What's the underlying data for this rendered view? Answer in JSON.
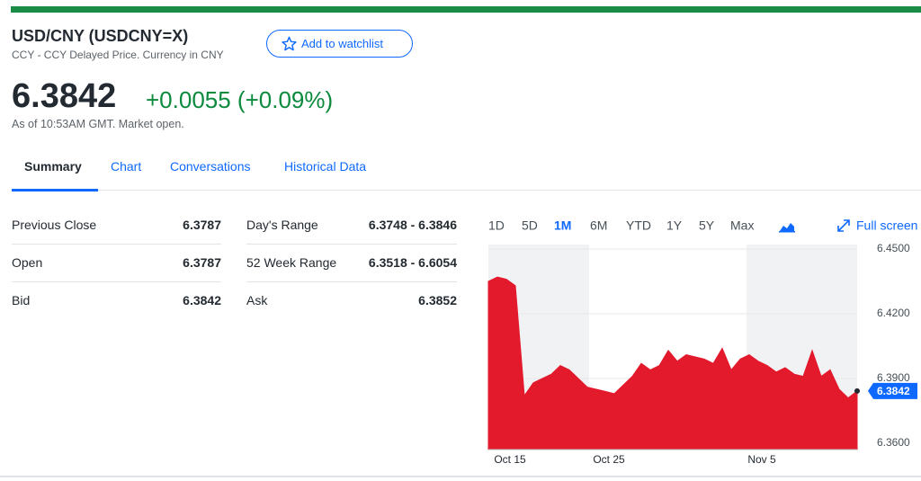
{
  "header": {
    "title": "USD/CNY (USDCNY=X)",
    "subtitle": "CCY - CCY Delayed Price. Currency in CNY",
    "watchlist_button": "Add to watchlist",
    "price": "6.3842",
    "change": "+0.0055 (+0.09%)",
    "as_of": "As of 10:53AM GMT. Market open."
  },
  "tabs": {
    "items": [
      "Summary",
      "Chart",
      "Conversations",
      "Historical Data"
    ],
    "selected": 0
  },
  "table": {
    "rows": [
      [
        "Previous Close",
        "6.3787",
        "Day's Range",
        "6.3748 - 6.3846"
      ],
      [
        "Open",
        "6.3787",
        "52 Week Range",
        "6.3518 - 6.6054"
      ],
      [
        "Bid",
        "6.3842",
        "Ask",
        "6.3852"
      ]
    ]
  },
  "ranges": {
    "items": [
      "1D",
      "5D",
      "1M",
      "6M",
      "YTD",
      "1Y",
      "5Y",
      "Max"
    ],
    "selected": 2,
    "full_screen": "Full screen"
  },
  "chart_data": {
    "type": "area",
    "color": "#e3192c",
    "categories": [
      null,
      null,
      "Oct 15",
      null,
      null,
      null,
      null,
      null,
      null,
      null,
      null,
      null,
      null,
      "Oct 25",
      null,
      null,
      null,
      null,
      null,
      null,
      null,
      null,
      null,
      null,
      null,
      null,
      null,
      null,
      null,
      null,
      "Nov 5",
      null,
      null,
      null,
      null,
      null,
      null,
      null,
      null,
      null,
      null,
      null
    ],
    "values": [
      6.435,
      6.437,
      6.436,
      6.433,
      6.382,
      6.388,
      6.39,
      6.392,
      6.396,
      6.394,
      6.39,
      6.386,
      6.385,
      6.384,
      6.383,
      6.387,
      6.391,
      6.397,
      6.394,
      6.396,
      6.403,
      6.398,
      6.401,
      6.4,
      6.399,
      6.397,
      6.404,
      6.394,
      6.399,
      6.401,
      6.398,
      6.396,
      6.393,
      6.395,
      6.392,
      6.391,
      6.403,
      6.391,
      6.394,
      6.385,
      6.381,
      6.3842
    ],
    "ylim": [
      6.36,
      6.45
    ],
    "yticks": [
      {
        "value": 6.45,
        "label": "6.4500"
      },
      {
        "value": 6.42,
        "label": "6.4200"
      },
      {
        "value": 6.39,
        "label": "6.3900"
      },
      {
        "value": 6.36,
        "label": "6.3600"
      }
    ],
    "grid": true
  }
}
